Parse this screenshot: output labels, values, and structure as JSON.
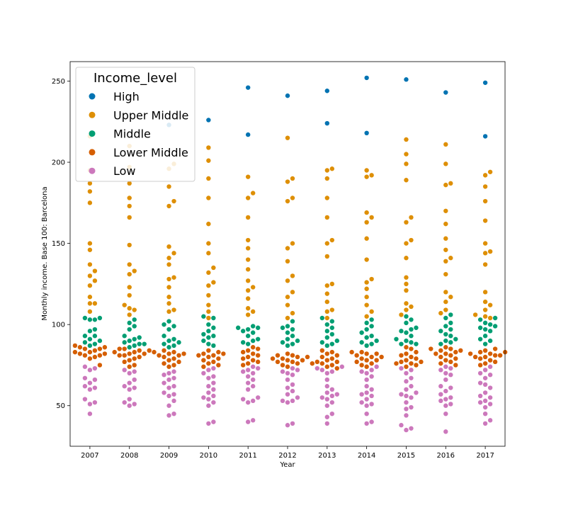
{
  "chart_data": {
    "type": "scatter",
    "xlabel": "Year",
    "ylabel": "Monthly income. Base 100: Barcelona",
    "categories": [
      "2007",
      "2008",
      "2009",
      "2010",
      "2011",
      "2012",
      "2013",
      "2014",
      "2015",
      "2016",
      "2017"
    ],
    "ylim": [
      25,
      262
    ],
    "yticks": [
      50,
      100,
      150,
      200,
      250
    ],
    "grid": false,
    "legend": {
      "title": "Income_level",
      "placement": "top-left"
    },
    "series": [
      {
        "name": "High",
        "color": "#0173b2",
        "values": [
          [],
          [],
          [
            223
          ],
          [
            226
          ],
          [
            246,
            217
          ],
          [
            241
          ],
          [
            244,
            224
          ],
          [
            252,
            218
          ],
          [
            251
          ],
          [
            243
          ],
          [
            249,
            216
          ]
        ]
      },
      {
        "name": "Upper Middle",
        "color": "#de8f05",
        "values": [
          [
            216,
            195,
            187,
            182,
            175,
            150,
            146,
            137,
            133,
            130,
            127,
            124,
            117,
            113,
            113,
            108
          ],
          [
            210,
            197,
            187,
            178,
            173,
            166,
            149,
            137,
            133,
            131,
            123,
            118,
            112,
            110,
            109,
            106
          ],
          [
            199,
            196,
            185,
            176,
            173,
            148,
            144,
            141,
            137,
            129,
            128,
            123,
            117,
            113,
            109,
            108
          ],
          [
            209,
            201,
            190,
            178,
            162,
            150,
            144,
            135,
            132,
            126,
            124,
            118,
            112,
            108,
            104
          ],
          [
            191,
            181,
            178,
            166,
            152,
            147,
            140,
            134,
            127,
            123,
            121,
            116,
            110,
            108,
            106
          ],
          [
            215,
            190,
            188,
            178,
            176,
            150,
            147,
            139,
            130,
            127,
            120,
            117,
            112,
            107,
            104
          ],
          [
            196,
            195,
            190,
            178,
            166,
            152,
            150,
            142,
            125,
            124,
            119,
            114,
            109,
            108,
            104
          ],
          [
            195,
            192,
            191,
            169,
            166,
            163,
            153,
            140,
            128,
            126,
            122,
            117,
            112,
            108,
            105
          ],
          [
            214,
            205,
            199,
            189,
            166,
            163,
            152,
            150,
            141,
            129,
            125,
            121,
            113,
            111,
            109,
            106
          ],
          [
            211,
            199,
            187,
            186,
            170,
            162,
            153,
            146,
            141,
            139,
            131,
            120,
            117,
            114,
            109,
            107
          ],
          [
            194,
            192,
            185,
            176,
            164,
            150,
            145,
            144,
            137,
            120,
            114,
            112,
            109,
            106,
            105,
            104
          ]
        ]
      },
      {
        "name": "Middle",
        "color": "#029e73",
        "values": [
          [
            104,
            104,
            103,
            103,
            97,
            96,
            93,
            93,
            91,
            90,
            89,
            88,
            87
          ],
          [
            103,
            101,
            99,
            97,
            93,
            92,
            91,
            90,
            89,
            88,
            88,
            87,
            86
          ],
          [
            102,
            100,
            99,
            97,
            93,
            91,
            90,
            89,
            88,
            87,
            86
          ],
          [
            105,
            104,
            100,
            98,
            96,
            94,
            93,
            92,
            90,
            88,
            87
          ],
          [
            99,
            98,
            98,
            97,
            96,
            95,
            93,
            91,
            90,
            89,
            88
          ],
          [
            102,
            99,
            98,
            97,
            95,
            93,
            91,
            90,
            89,
            88,
            87
          ],
          [
            104,
            102,
            100,
            98,
            96,
            94,
            92,
            90,
            89,
            88,
            87
          ],
          [
            103,
            101,
            99,
            97,
            95,
            93,
            92,
            90,
            89,
            88,
            87
          ],
          [
            105,
            103,
            101,
            98,
            97,
            96,
            95,
            93,
            91,
            90,
            89,
            88,
            88
          ],
          [
            106,
            104,
            101,
            99,
            97,
            96,
            94,
            93,
            91,
            90,
            89,
            88
          ],
          [
            104,
            103,
            101,
            100,
            99,
            98,
            97,
            96,
            93,
            91,
            90,
            88
          ]
        ]
      },
      {
        "name": "Lower Middle",
        "color": "#d55e00",
        "values": [
          [
            87,
            86,
            86,
            85,
            85,
            84,
            83,
            83,
            82,
            82,
            81,
            81,
            80,
            79,
            75
          ],
          [
            85,
            85,
            84,
            84,
            83,
            83,
            82,
            82,
            81,
            81,
            80,
            79,
            78,
            77,
            75,
            74
          ],
          [
            84,
            83,
            83,
            82,
            82,
            81,
            81,
            80,
            79,
            78,
            77,
            76,
            75,
            74
          ],
          [
            84,
            83,
            82,
            82,
            81,
            81,
            80,
            79,
            78,
            77,
            76,
            75,
            74
          ],
          [
            86,
            85,
            84,
            83,
            82,
            81,
            80,
            79,
            78,
            77,
            76,
            75
          ],
          [
            82,
            81,
            81,
            80,
            80,
            79,
            79,
            78,
            78,
            77,
            77,
            76,
            75,
            74
          ],
          [
            84,
            83,
            82,
            81,
            80,
            79,
            78,
            77,
            77,
            76,
            76,
            75,
            74,
            73
          ],
          [
            83,
            83,
            82,
            82,
            81,
            80,
            80,
            79,
            78,
            78,
            77,
            76,
            75,
            74
          ],
          [
            86,
            85,
            83,
            82,
            81,
            80,
            79,
            78,
            77,
            77,
            76,
            76,
            75,
            74
          ],
          [
            86,
            85,
            85,
            84,
            84,
            83,
            82,
            82,
            81,
            80,
            79,
            78,
            77,
            76,
            75
          ],
          [
            85,
            84,
            83,
            83,
            82,
            82,
            81,
            81,
            80,
            80,
            79,
            78,
            77,
            76,
            75
          ]
        ]
      },
      {
        "name": "Low",
        "color": "#cc78bc",
        "values": [
          [
            74,
            73,
            72,
            67,
            66,
            64,
            62,
            61,
            60,
            54,
            52,
            51,
            45
          ],
          [
            72,
            71,
            70,
            66,
            64,
            62,
            61,
            60,
            54,
            52,
            51,
            50
          ],
          [
            71,
            70,
            69,
            67,
            66,
            64,
            62,
            61,
            58,
            57,
            56,
            53,
            50,
            45,
            44
          ],
          [
            73,
            72,
            70,
            68,
            67,
            64,
            62,
            60,
            58,
            56,
            55,
            54,
            52,
            50,
            40,
            39
          ],
          [
            74,
            73,
            72,
            71,
            70,
            68,
            66,
            64,
            62,
            60,
            55,
            54,
            53,
            52,
            41,
            40
          ],
          [
            73,
            72,
            71,
            70,
            69,
            66,
            63,
            61,
            59,
            57,
            55,
            53,
            53,
            52,
            39,
            38
          ],
          [
            74,
            73,
            72,
            71,
            70,
            66,
            62,
            60,
            58,
            57,
            56,
            55,
            54,
            52,
            50,
            45,
            43,
            39
          ],
          [
            74,
            72,
            71,
            70,
            68,
            66,
            62,
            60,
            58,
            57,
            56,
            54,
            52,
            51,
            50,
            45,
            40,
            39
          ],
          [
            73,
            72,
            70,
            67,
            65,
            62,
            60,
            58,
            57,
            56,
            55,
            52,
            49,
            48,
            44,
            38,
            36,
            35
          ],
          [
            74,
            73,
            72,
            70,
            69,
            66,
            62,
            61,
            59,
            57,
            55,
            54,
            53,
            51,
            50,
            45,
            34
          ],
          [
            74,
            72,
            70,
            69,
            67,
            64,
            63,
            61,
            58,
            56,
            55,
            53,
            52,
            51,
            49,
            45,
            41,
            39
          ]
        ]
      }
    ]
  }
}
